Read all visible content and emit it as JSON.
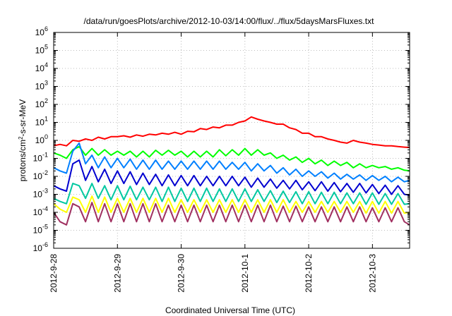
{
  "chart_data": {
    "type": "line",
    "title": "/data/run/goesPlots/archive/2012-10-03/14:00/flux/../flux/5daysMarsFluxes.txt",
    "xlabel": "Coordinated Universal Time (UTC)",
    "ylabel_main": "protons/cm",
    "ylabel_sup": "2",
    "ylabel_rest": "-s-sr-MeV",
    "x_ticks": [
      "2012-9-28",
      "2012-9-29",
      "2012-9-30",
      "2012-10-1",
      "2012-10-2",
      "2012-10-3"
    ],
    "xlim": [
      "2012-09-28 00:00",
      "2012-10-03 14:00"
    ],
    "y_scale": "log",
    "y_ticks": [
      {
        "base": "10",
        "exp": "6"
      },
      {
        "base": "10",
        "exp": "5"
      },
      {
        "base": "10",
        "exp": "4"
      },
      {
        "base": "10",
        "exp": "3"
      },
      {
        "base": "10",
        "exp": "2"
      },
      {
        "base": "10",
        "exp": "1"
      },
      {
        "base": "10",
        "exp": "0"
      },
      {
        "base": "10",
        "exp": "-1"
      },
      {
        "base": "10",
        "exp": "-2"
      },
      {
        "base": "10",
        "exp": "-3"
      },
      {
        "base": "10",
        "exp": "-4"
      },
      {
        "base": "10",
        "exp": "-5"
      },
      {
        "base": "10",
        "exp": "-6"
      }
    ],
    "ylim": [
      1e-06,
      1000000.0
    ],
    "grid": true,
    "x": [
      "2012-09-28 00:00",
      "2012-09-28 02:24",
      "2012-09-28 04:48",
      "2012-09-28 07:12",
      "2012-09-28 09:36",
      "2012-09-28 12:00",
      "2012-09-28 14:24",
      "2012-09-28 16:48",
      "2012-09-28 19:12",
      "2012-09-28 21:36",
      "2012-09-29 00:00",
      "2012-09-29 02:24",
      "2012-09-29 04:48",
      "2012-09-29 07:12",
      "2012-09-29 09:36",
      "2012-09-29 12:00",
      "2012-09-29 14:24",
      "2012-09-29 16:48",
      "2012-09-29 19:12",
      "2012-09-29 21:36",
      "2012-09-30 00:00",
      "2012-09-30 02:24",
      "2012-09-30 04:48",
      "2012-09-30 07:12",
      "2012-09-30 09:36",
      "2012-09-30 12:00",
      "2012-09-30 14:24",
      "2012-09-30 16:48",
      "2012-09-30 19:12",
      "2012-09-30 21:36",
      "2012-10-01 00:00",
      "2012-10-01 02:24",
      "2012-10-01 04:48",
      "2012-10-01 07:12",
      "2012-10-01 09:36",
      "2012-10-01 12:00",
      "2012-10-01 14:24",
      "2012-10-01 16:48",
      "2012-10-01 19:12",
      "2012-10-01 21:36",
      "2012-10-02 00:00",
      "2012-10-02 02:24",
      "2012-10-02 04:48",
      "2012-10-02 07:12",
      "2012-10-02 09:36",
      "2012-10-02 12:00",
      "2012-10-02 14:24",
      "2012-10-02 16:48",
      "2012-10-02 19:12",
      "2012-10-02 21:36",
      "2012-10-03 00:00",
      "2012-10-03 02:24",
      "2012-10-03 04:48",
      "2012-10-03 07:12",
      "2012-10-03 09:36",
      "2012-10-03 12:00",
      "2012-10-03 14:00"
    ],
    "series": [
      {
        "color": "#ff0000",
        "values": [
          0.5,
          0.6,
          0.5,
          1.0,
          0.9,
          1.2,
          1.0,
          1.5,
          1.2,
          1.6,
          1.6,
          1.8,
          1.5,
          2.0,
          1.7,
          2.2,
          2.0,
          2.5,
          2.2,
          2.8,
          2.2,
          3.2,
          3.0,
          4.5,
          4.0,
          5.5,
          5.0,
          7.0,
          7.0,
          10.0,
          12.0,
          20.0,
          15.0,
          12.0,
          10.0,
          8.0,
          8.0,
          5.0,
          4.0,
          2.5,
          2.5,
          1.6,
          1.6,
          1.2,
          1.0,
          0.8,
          0.7,
          1.0,
          0.8,
          0.7,
          0.6,
          0.55,
          0.5,
          0.5,
          0.45,
          0.42,
          0.4
        ]
      },
      {
        "color": "#00ff00",
        "values": [
          0.2,
          0.15,
          0.1,
          0.3,
          0.45,
          0.15,
          0.35,
          0.15,
          0.3,
          0.15,
          0.25,
          0.15,
          0.25,
          0.12,
          0.25,
          0.12,
          0.28,
          0.15,
          0.28,
          0.15,
          0.25,
          0.12,
          0.25,
          0.12,
          0.25,
          0.12,
          0.3,
          0.14,
          0.3,
          0.15,
          0.35,
          0.15,
          0.3,
          0.15,
          0.2,
          0.1,
          0.15,
          0.08,
          0.12,
          0.06,
          0.1,
          0.05,
          0.08,
          0.04,
          0.07,
          0.04,
          0.06,
          0.03,
          0.05,
          0.03,
          0.04,
          0.03,
          0.035,
          0.025,
          0.03,
          0.022,
          0.02
        ]
      },
      {
        "color": "#0080ff",
        "values": [
          0.03,
          0.02,
          0.015,
          0.25,
          0.7,
          0.05,
          0.15,
          0.03,
          0.12,
          0.03,
          0.1,
          0.03,
          0.09,
          0.025,
          0.08,
          0.025,
          0.08,
          0.025,
          0.07,
          0.025,
          0.07,
          0.025,
          0.07,
          0.025,
          0.07,
          0.025,
          0.07,
          0.025,
          0.06,
          0.025,
          0.06,
          0.02,
          0.05,
          0.02,
          0.04,
          0.015,
          0.03,
          0.012,
          0.025,
          0.01,
          0.02,
          0.01,
          0.018,
          0.008,
          0.015,
          0.007,
          0.013,
          0.007,
          0.012,
          0.006,
          0.011,
          0.006,
          0.01,
          0.005,
          0.009,
          0.005,
          0.006
        ]
      },
      {
        "color": "#0000d0",
        "values": [
          0.003,
          0.002,
          0.0015,
          0.05,
          0.08,
          0.006,
          0.035,
          0.005,
          0.025,
          0.004,
          0.02,
          0.004,
          0.018,
          0.0035,
          0.015,
          0.0035,
          0.013,
          0.003,
          0.012,
          0.003,
          0.011,
          0.003,
          0.011,
          0.003,
          0.01,
          0.003,
          0.01,
          0.003,
          0.01,
          0.003,
          0.009,
          0.0025,
          0.008,
          0.0025,
          0.007,
          0.0022,
          0.006,
          0.002,
          0.006,
          0.0018,
          0.005,
          0.0016,
          0.005,
          0.0015,
          0.0045,
          0.0014,
          0.004,
          0.0013,
          0.004,
          0.0012,
          0.0035,
          0.0011,
          0.0032,
          0.001,
          0.003,
          0.001,
          0.0009
        ]
      },
      {
        "color": "#00c8a0",
        "values": [
          0.0006,
          0.0004,
          0.0003,
          0.004,
          0.003,
          0.0006,
          0.004,
          0.0006,
          0.003,
          0.0005,
          0.003,
          0.0005,
          0.0028,
          0.0005,
          0.0025,
          0.0005,
          0.0025,
          0.0004,
          0.0025,
          0.0004,
          0.0022,
          0.0004,
          0.0022,
          0.0004,
          0.0022,
          0.0004,
          0.002,
          0.0004,
          0.002,
          0.0004,
          0.002,
          0.0004,
          0.0018,
          0.0004,
          0.0016,
          0.00035,
          0.0015,
          0.00035,
          0.0014,
          0.0003,
          0.0014,
          0.0003,
          0.0013,
          0.0003,
          0.0013,
          0.0003,
          0.0012,
          0.0003,
          0.0012,
          0.00028,
          0.0012,
          0.00028,
          0.0011,
          0.00028,
          0.0011,
          0.00028,
          0.0003
        ]
      },
      {
        "color": "#ffff00",
        "values": [
          0.0003,
          0.00015,
          0.0001,
          0.0007,
          0.0005,
          0.0001,
          0.0008,
          0.0001,
          0.0007,
          0.0001,
          0.0006,
          0.0001,
          0.0006,
          0.0001,
          0.0006,
          0.0001,
          0.0006,
          0.0001,
          0.0006,
          0.0001,
          0.0005,
          0.0001,
          0.0005,
          0.0001,
          0.0005,
          0.0001,
          0.0005,
          0.0001,
          0.0005,
          0.0001,
          0.0005,
          0.0001,
          0.0005,
          0.0001,
          0.0005,
          0.0001,
          0.0005,
          0.0001,
          0.0004,
          0.0001,
          0.0004,
          0.0001,
          0.0004,
          0.0001,
          0.0004,
          0.0001,
          0.0004,
          0.0001,
          0.0004,
          9e-05,
          0.0004,
          9e-05,
          0.0004,
          9e-05,
          0.0004,
          9e-05,
          0.0001
        ]
      },
      {
        "color": "#a03060",
        "values": [
          0.0001,
          3e-05,
          2e-05,
          0.0003,
          0.0002,
          3e-05,
          0.00035,
          3e-05,
          0.0003,
          3e-05,
          0.0003,
          3e-05,
          0.0003,
          3e-05,
          0.0003,
          3e-05,
          0.0003,
          3e-05,
          0.00025,
          3e-05,
          0.00025,
          3e-05,
          0.00025,
          3e-05,
          0.00025,
          3e-05,
          0.00025,
          3e-05,
          0.00025,
          3e-05,
          0.00025,
          3e-05,
          0.00025,
          3e-05,
          0.00025,
          3e-05,
          0.00022,
          3e-05,
          0.00022,
          3e-05,
          0.0002,
          3e-05,
          0.0002,
          3e-05,
          0.0002,
          3e-05,
          0.0002,
          3e-05,
          0.0002,
          3e-05,
          0.00018,
          3e-05,
          0.00018,
          3e-05,
          0.00018,
          3e-05,
          2e-05
        ]
      }
    ]
  }
}
